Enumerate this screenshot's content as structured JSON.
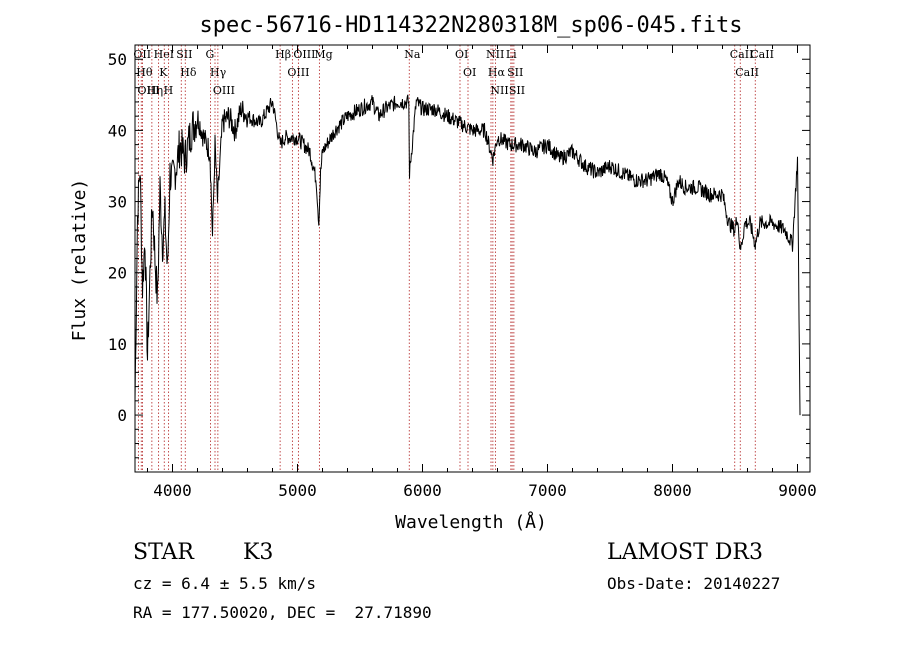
{
  "chart_data": {
    "type": "line",
    "title": "spec-56716-HD114322N280318M_sp06-045.fits",
    "xlabel": "Wavelength (Å)",
    "ylabel": "Flux (relative)",
    "xlim": [
      3700,
      9100
    ],
    "ylim": [
      -8,
      52
    ],
    "xticks": [
      4000,
      5000,
      6000,
      7000,
      8000,
      9000
    ],
    "yticks": [
      0,
      10,
      20,
      30,
      40,
      50
    ],
    "grid": false,
    "series": [
      {
        "x": [
          3700,
          3720,
          3740,
          3760,
          3780,
          3800,
          3820,
          3840,
          3860,
          3880,
          3900,
          3920,
          3940,
          3960,
          3980,
          4000,
          4030,
          4060,
          4100,
          4150,
          4200,
          4250,
          4300,
          4320,
          4340,
          4360,
          4400,
          4450,
          4500,
          4550,
          4600,
          4700,
          4800,
          4860,
          4900,
          5000,
          5100,
          5150,
          5170,
          5185,
          5200,
          5300,
          5400,
          5500,
          5600,
          5650,
          5700,
          5800,
          5890,
          5896,
          5950,
          6000,
          6100,
          6200,
          6300,
          6400,
          6500,
          6563,
          6600,
          6700,
          6800,
          6900,
          7000,
          7100,
          7200,
          7300,
          7400,
          7500,
          7600,
          7700,
          7800,
          7900,
          7950,
          8000,
          8050,
          8100,
          8200,
          8300,
          8400,
          8450,
          8498,
          8520,
          8542,
          8580,
          8620,
          8662,
          8700,
          8800,
          8900,
          8960,
          9000,
          9020
        ],
        "y": [
          2,
          28,
          35,
          18,
          25,
          8,
          20,
          30,
          22,
          16,
          32,
          24,
          28,
          20,
          34,
          33,
          35,
          38,
          36,
          40,
          42,
          39,
          37,
          25,
          38,
          30,
          41,
          42,
          40,
          43,
          42,
          41,
          44,
          38,
          39,
          39,
          37,
          33,
          27,
          34,
          37,
          40,
          42,
          43,
          44,
          42,
          43,
          44,
          44,
          34,
          44,
          43,
          43,
          42,
          41,
          40,
          40,
          36,
          39,
          38,
          38,
          37,
          38,
          36,
          37,
          35,
          34,
          35,
          34,
          33,
          33,
          34,
          33,
          30,
          33,
          32,
          32,
          31,
          31,
          27,
          26,
          28,
          23,
          27,
          27,
          24,
          27,
          27,
          26,
          24,
          36,
          0
        ]
      }
    ],
    "line_markers": [
      {
        "wavelength": 3727,
        "label": "OII"
      },
      {
        "wavelength": 3750,
        "label": "Hθ"
      },
      {
        "wavelength": 3760,
        "label": "OIII"
      },
      {
        "wavelength": 3835,
        "label": "Hη"
      },
      {
        "wavelength": 3889,
        "label": "HeI"
      },
      {
        "wavelength": 3934,
        "label": "K"
      },
      {
        "wavelength": 3969,
        "label": "H"
      },
      {
        "wavelength": 4070,
        "label": "SII"
      },
      {
        "wavelength": 4102,
        "label": "Hδ"
      },
      {
        "wavelength": 4304,
        "label": "G"
      },
      {
        "wavelength": 4340,
        "label": "Hγ"
      },
      {
        "wavelength": 4363,
        "label": "OIII"
      },
      {
        "wavelength": 4861,
        "label": "Hβ"
      },
      {
        "wavelength": 4959,
        "label": "OIII"
      },
      {
        "wavelength": 5007,
        "label": "OIII"
      },
      {
        "wavelength": 5175,
        "label": "Mg"
      },
      {
        "wavelength": 5894,
        "label": "Na"
      },
      {
        "wavelength": 6300,
        "label": "OI"
      },
      {
        "wavelength": 6364,
        "label": "OI"
      },
      {
        "wavelength": 6548,
        "label": "NII"
      },
      {
        "wavelength": 6563,
        "label": "Hα"
      },
      {
        "wavelength": 6583,
        "label": "NII"
      },
      {
        "wavelength": 6707,
        "label": "Li"
      },
      {
        "wavelength": 6717,
        "label": "SII"
      },
      {
        "wavelength": 6731,
        "label": "SII"
      },
      {
        "wavelength": 8498,
        "label": "CaII"
      },
      {
        "wavelength": 8542,
        "label": "CaII"
      },
      {
        "wavelength": 8662,
        "label": "CaII"
      }
    ]
  },
  "info": {
    "class": "STAR",
    "subclass": "K3",
    "survey": "LAMOST DR3",
    "cz": "cz = 6.4 ± 5.5 km/s",
    "obs_date": "Obs-Date: 20140227",
    "coords": "RA = 177.50020, DEC =  27.71890"
  },
  "colors": {
    "axis": "#000000",
    "spectrum": "#000000",
    "marker": "#b22222"
  }
}
